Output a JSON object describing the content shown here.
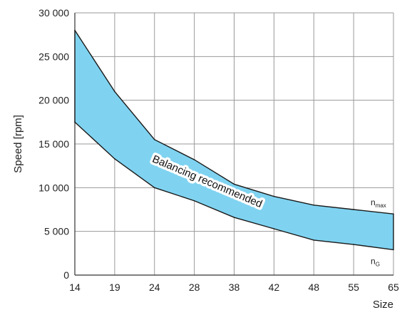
{
  "chart_data": {
    "type": "area",
    "title": "",
    "xlabel": "Size",
    "ylabel": "Speed [rpm]",
    "categories": [
      "14",
      "19",
      "24",
      "28",
      "38",
      "42",
      "48",
      "55",
      "65"
    ],
    "yticks": [
      0,
      5000,
      10000,
      15000,
      20000,
      25000,
      30000
    ],
    "ytick_labels": [
      "0",
      "5 000",
      "10 000",
      "15 000",
      "20 000",
      "25 000",
      "30 000"
    ],
    "ylim": [
      0,
      30000
    ],
    "grid": true,
    "series": [
      {
        "name": "n_max",
        "label_main": "n",
        "label_sub": "max",
        "values": [
          28000,
          21000,
          15500,
          13200,
          10400,
          9000,
          8000,
          7500,
          7000
        ]
      },
      {
        "name": "n_G",
        "label_main": "n",
        "label_sub": "G",
        "values": [
          17500,
          13300,
          10000,
          8500,
          6600,
          5300,
          4000,
          3500,
          2900
        ]
      }
    ],
    "band_label": "Balancing recommended",
    "band_color": "#7fd3f1",
    "line_color": "#1a1a1a",
    "grid_color": "#9a9a9a"
  }
}
